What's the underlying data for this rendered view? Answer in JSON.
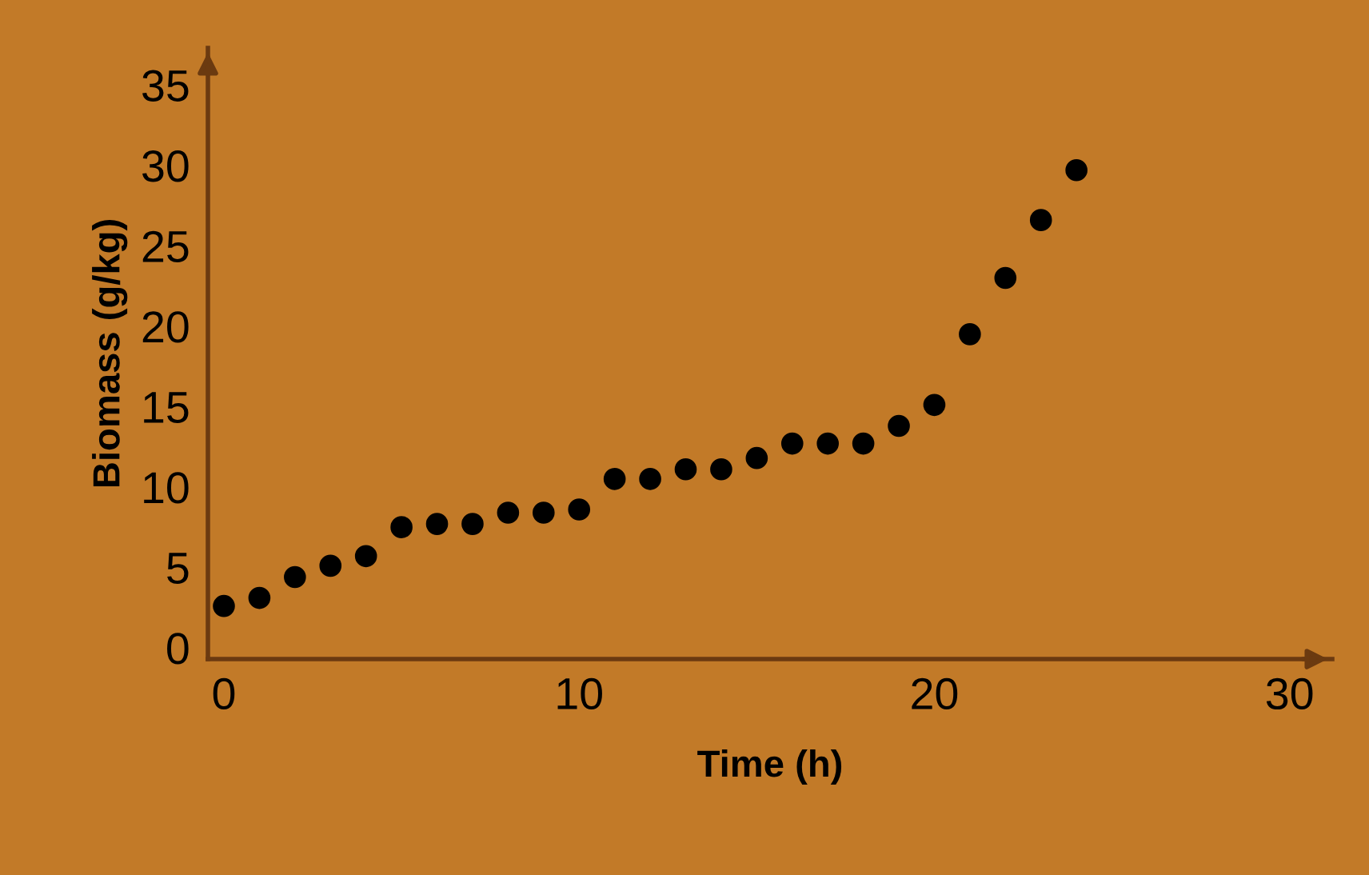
{
  "chart_data": {
    "type": "scatter",
    "xlabel": "Time (h)",
    "ylabel": "Biomass (g/kg)",
    "x": [
      0,
      1,
      2,
      3,
      4,
      5,
      6,
      7,
      8,
      9,
      10,
      11,
      12,
      13,
      14,
      15,
      16,
      17,
      18,
      19,
      20,
      21,
      22,
      23,
      24
    ],
    "values": [
      2.6,
      3.1,
      4.4,
      5.1,
      5.7,
      7.5,
      7.7,
      7.7,
      8.4,
      8.4,
      8.6,
      10.5,
      10.5,
      11.1,
      11.1,
      11.8,
      12.7,
      12.7,
      12.7,
      13.8,
      15.1,
      19.5,
      23.0,
      26.6,
      29.7
    ],
    "color": "#000000",
    "marker": "circle",
    "xlim": [
      -0.45,
      31.2
    ],
    "ylim": [
      -0.7,
      37.3
    ],
    "xticks": [
      0,
      10,
      20,
      30
    ],
    "yticks": [
      0,
      5,
      10,
      15,
      20,
      25,
      30,
      35
    ],
    "grid": false,
    "legend": false
  }
}
